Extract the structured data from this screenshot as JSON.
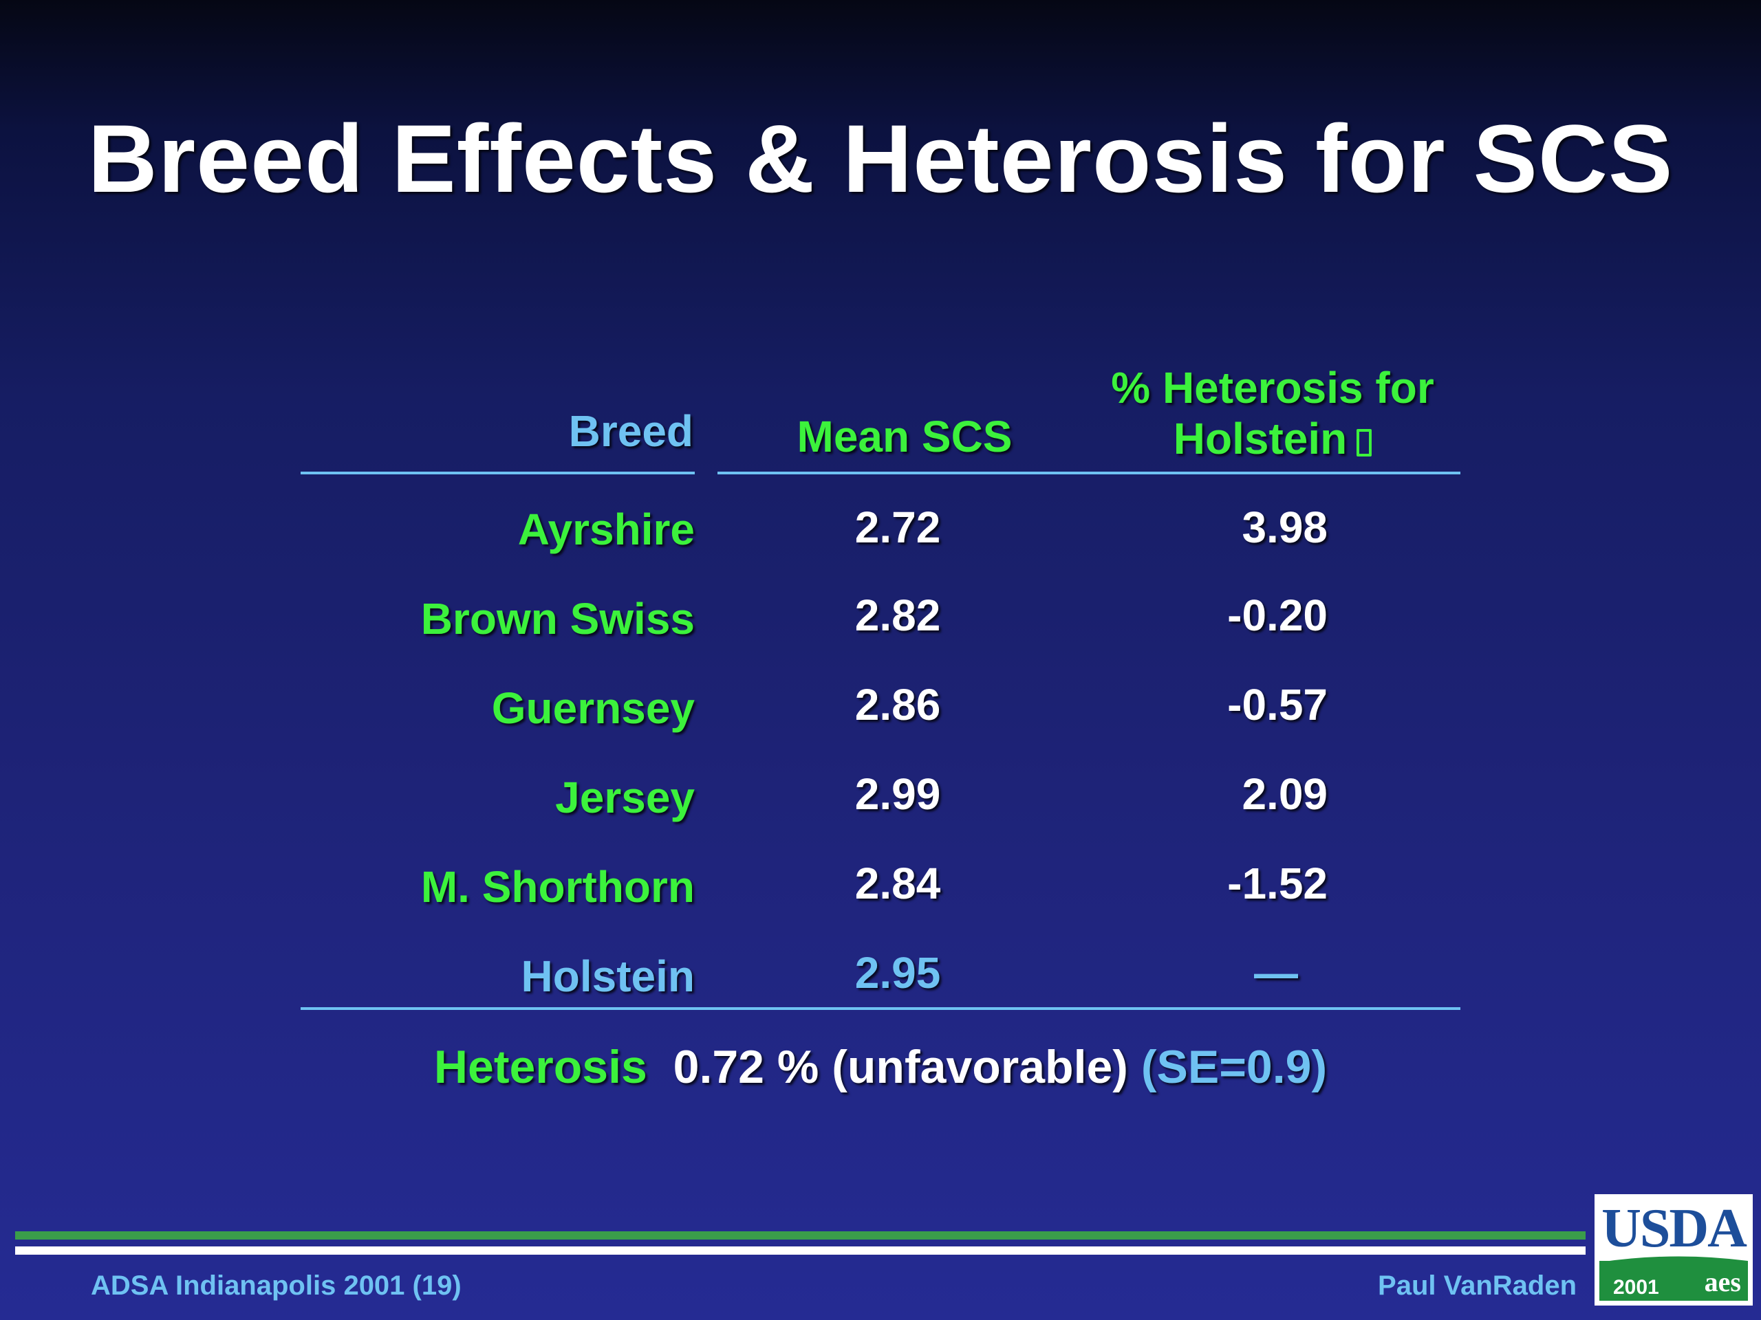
{
  "slide": {
    "title": "Breed Effects & Heterosis for SCS",
    "table": {
      "headers": {
        "breed": "Breed",
        "mean_scs": "Mean SCS",
        "heterosis_line1": "% Heterosis for",
        "heterosis_line2": "Holstein"
      },
      "rows": [
        {
          "breed": "Ayrshire",
          "mean_scs": "2.72",
          "heterosis": "3.98"
        },
        {
          "breed": "Brown Swiss",
          "mean_scs": "2.82",
          "heterosis": "-0.20"
        },
        {
          "breed": "Guernsey",
          "mean_scs": "2.86",
          "heterosis": "-0.57"
        },
        {
          "breed": "Jersey",
          "mean_scs": "2.99",
          "heterosis": "2.09"
        },
        {
          "breed": "M. Shorthorn",
          "mean_scs": "2.84",
          "heterosis": "-1.52"
        },
        {
          "breed": "Holstein",
          "mean_scs": "2.95",
          "heterosis": "—"
        }
      ]
    },
    "summary": {
      "label": "Heterosis",
      "value": "0.72 % (unfavorable)",
      "se": "(SE=0.9)"
    },
    "footer": {
      "left": "ADSA Indianapolis 2001 (19)",
      "right": "Paul VanRaden"
    },
    "logo": {
      "text": "USDA",
      "year": "2001",
      "mark": "aes"
    }
  }
}
